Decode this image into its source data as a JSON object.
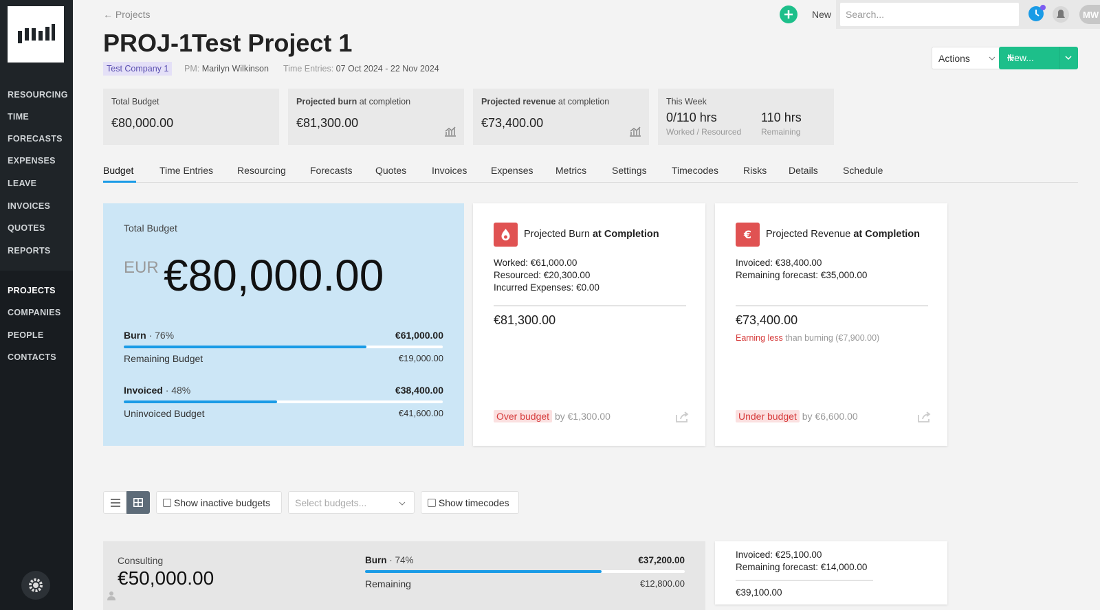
{
  "sidebar": {
    "nav_top": [
      "RESOURCING",
      "TIME",
      "FORECASTS",
      "EXPENSES",
      "LEAVE",
      "INVOICES",
      "QUOTES",
      "REPORTS"
    ],
    "nav_bottom": [
      "PROJECTS",
      "COMPANIES",
      "PEOPLE",
      "CONTACTS"
    ]
  },
  "topbar": {
    "back": "← Projects",
    "new": "New",
    "search_placeholder": "Search...",
    "avatar": "MW"
  },
  "header": {
    "code": "PROJ-1",
    "title": "Test Project 1",
    "company": "Test Company 1",
    "pm_label": "PM:",
    "pm": "Marilyn Wilkinson",
    "time_label": "Time Entries:",
    "time_range": "07 Oct 2024 - 22 Nov 2024",
    "actions": "Actions",
    "new_button": "New..."
  },
  "summary": {
    "total": {
      "label": "Total Budget",
      "value": "€80,000.00"
    },
    "burn": {
      "label_bold": "Projected burn",
      "label": "at completion",
      "value": "€81,300.00"
    },
    "revenue": {
      "label_bold": "Projected revenue",
      "label": "at completion",
      "value": "€73,400.00"
    },
    "week": {
      "label": "This Week",
      "items": [
        {
          "value": "0/110 hrs",
          "caption": "Worked / Resourced"
        },
        {
          "value": "110 hrs",
          "caption": "Remaining"
        }
      ]
    }
  },
  "tabs": [
    "Budget",
    "Time Entries",
    "Resourcing",
    "Forecasts",
    "Quotes",
    "Invoices",
    "Expenses",
    "Metrics",
    "Settings",
    "Timecodes",
    "Risks",
    "Details",
    "Schedule"
  ],
  "budget_card": {
    "label": "Total Budget",
    "currency": "EUR",
    "amount": "€80,000.00",
    "rows": [
      {
        "name": "Burn",
        "percent": {
          "value": 76,
          "label": "· 76%"
        },
        "amount": "€61,000.00",
        "rest_label": "Remaining Budget",
        "rest": "€19,000.00"
      },
      {
        "name": "Invoiced",
        "percent": {
          "value": 48,
          "label": "· 48%"
        },
        "amount": "€38,400.00",
        "rest_label": "Uninvoiced Budget",
        "rest": "€41,600.00"
      }
    ]
  },
  "burn_card": {
    "title": "Projected Burn",
    "title_bold": "at Completion",
    "lines": [
      "Worked: €61,000.00",
      "Resourced: €20,300.00",
      "Incurred Expenses: €0.00"
    ],
    "total": "€81,300.00",
    "badge": "Over budget",
    "badge_note": "by €1,300.00"
  },
  "revenue_card": {
    "title": "Projected Revenue",
    "title_bold": "at Completion",
    "lines": [
      "Invoiced: €38,400.00",
      "Remaining forecast: €35,000.00"
    ],
    "total": "€73,400.00",
    "warning": "Earning less",
    "warning_note": "than burning (€7,900.00)",
    "badge": "Under budget",
    "badge_note": "by €6,600.00"
  },
  "toolbar": {
    "inactive": "Show inactive budgets",
    "select": "Select budgets...",
    "timecodes": "Show timecodes"
  },
  "budgets": [
    {
      "name": "Consulting",
      "amount": "€50,000.00",
      "burn_label": "Burn",
      "percent": {
        "value": 74,
        "label": "· 74%"
      },
      "burn": "€37,200.00",
      "rest_label": "Remaining",
      "rest": "€12,800.00",
      "lines": [
        "Invoiced: €25,100.00",
        "Remaining forecast: €14,000.00"
      ],
      "total": "€39,100.00"
    }
  ]
}
